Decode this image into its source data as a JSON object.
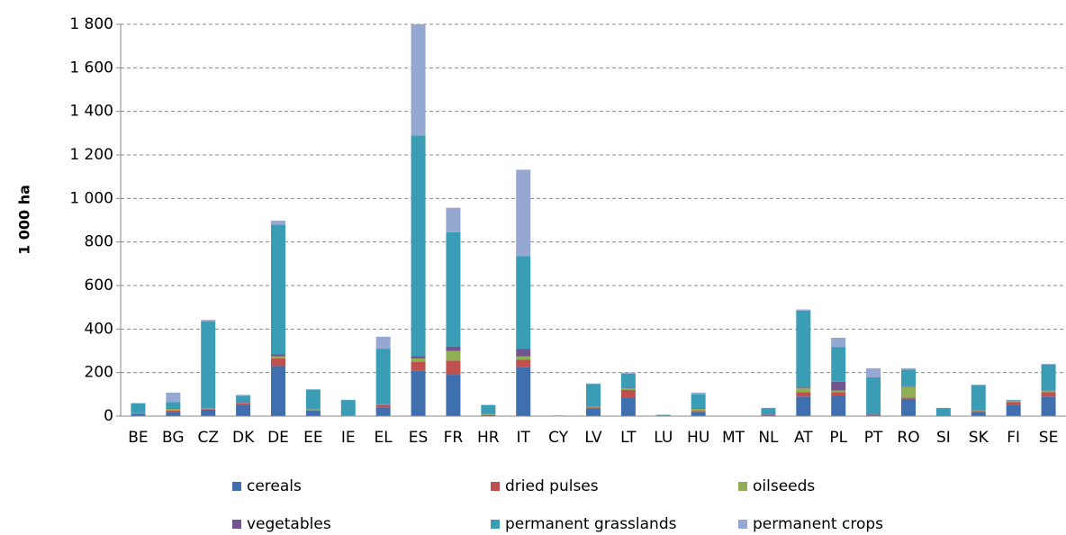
{
  "chart_data": {
    "type": "stacked_bar",
    "y_axis_label": "1 000 ha",
    "categories": [
      "BE",
      "BG",
      "CZ",
      "DK",
      "DE",
      "EE",
      "IE",
      "EL",
      "ES",
      "FR",
      "HR",
      "IT",
      "CY",
      "LV",
      "LT",
      "LU",
      "HU",
      "MT",
      "NL",
      "AT",
      "PL",
      "PT",
      "RO",
      "SI",
      "SK",
      "FI",
      "SE"
    ],
    "series": [
      {
        "name": "cereals",
        "color": "#3f6fae",
        "values": [
          10,
          20,
          30,
          50,
          230,
          25,
          3,
          40,
          210,
          190,
          5,
          225,
          1,
          35,
          85,
          2,
          20,
          0,
          5,
          90,
          95,
          5,
          80,
          2,
          20,
          50,
          90
        ]
      },
      {
        "name": "dried pulses",
        "color": "#c0504d",
        "values": [
          1,
          5,
          3,
          8,
          35,
          3,
          0,
          10,
          40,
          65,
          1,
          35,
          0,
          5,
          35,
          0,
          3,
          0,
          1,
          20,
          15,
          1,
          5,
          0,
          3,
          15,
          20
        ]
      },
      {
        "name": "oilseeds",
        "color": "#8fae56",
        "values": [
          0,
          8,
          2,
          3,
          10,
          3,
          0,
          2,
          15,
          45,
          3,
          15,
          0,
          2,
          8,
          0,
          10,
          0,
          0,
          20,
          8,
          0,
          50,
          0,
          3,
          5,
          5
        ]
      },
      {
        "name": "vegetables",
        "color": "#71558f",
        "values": [
          2,
          2,
          1,
          3,
          10,
          1,
          0,
          3,
          10,
          20,
          1,
          35,
          0,
          0,
          2,
          0,
          2,
          0,
          2,
          5,
          40,
          2,
          3,
          0,
          1,
          1,
          2
        ]
      },
      {
        "name": "permanent grasslands",
        "color": "#3a9db5",
        "values": [
          45,
          30,
          400,
          30,
          595,
          90,
          71,
          255,
          1015,
          525,
          40,
          425,
          0,
          106,
          65,
          4,
          65,
          0,
          29,
          350,
          160,
          170,
          75,
          35,
          115,
          3,
          120
        ]
      },
      {
        "name": "permanent crops",
        "color": "#95a8d2",
        "values": [
          2,
          43,
          6,
          4,
          18,
          1,
          1,
          55,
          510,
          112,
          2,
          397,
          2,
          2,
          5,
          0,
          8,
          0,
          1,
          5,
          42,
          42,
          7,
          1,
          3,
          1,
          3
        ]
      }
    ],
    "ylim": [
      0,
      1800
    ],
    "yticks": [
      0,
      200,
      400,
      600,
      800,
      {
        "value": 1000,
        "label": "1 000"
      },
      {
        "value": 1200,
        "label": "1 200"
      },
      {
        "value": 1400,
        "label": "1 400"
      },
      {
        "value": 1600,
        "label": "1 600"
      },
      {
        "value": 1800,
        "label": "1 800"
      }
    ],
    "grid": true
  }
}
